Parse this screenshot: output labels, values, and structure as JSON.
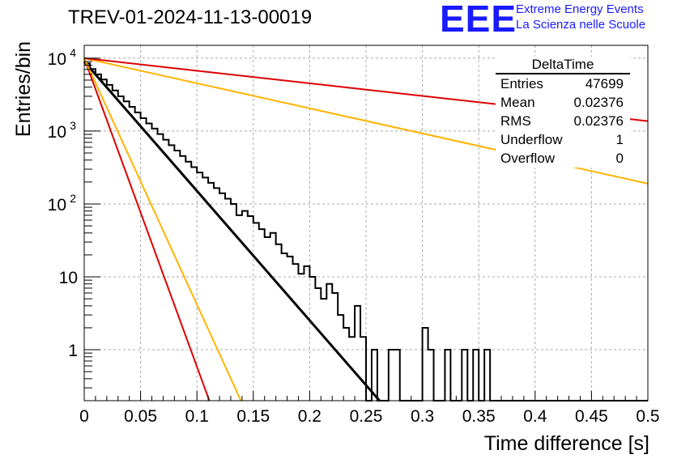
{
  "header": {
    "title": "TREV-01-2024-11-13-00019",
    "logo_text": "EEE",
    "logo_line1": "Extreme Energy Events",
    "logo_line2": "La Scienza nelle Scuole"
  },
  "stats": {
    "title": "DeltaTime",
    "rows": [
      {
        "label": "Entries",
        "value": "47699"
      },
      {
        "label": "Mean",
        "value": "0.02376"
      },
      {
        "label": "RMS",
        "value": "0.02376"
      },
      {
        "label": "Underflow",
        "value": "1"
      },
      {
        "label": "Overflow",
        "value": "0"
      }
    ]
  },
  "chart_data": {
    "type": "line",
    "title": "TREV-01-2024-11-13-00019",
    "xlabel": "Time difference [s]",
    "ylabel": "Entries/bin",
    "xlim": [
      0,
      0.5
    ],
    "ylim": [
      0.2,
      15000
    ],
    "y_scale": "log",
    "grid": true,
    "x_ticks": [
      "0",
      "0.05",
      "0.1",
      "0.15",
      "0.2",
      "0.25",
      "0.3",
      "0.35",
      "0.4",
      "0.45",
      "0.5"
    ],
    "y_ticks": [
      {
        "value": 1,
        "label": "1"
      },
      {
        "value": 10,
        "label": "10"
      },
      {
        "value": 100,
        "label": "10",
        "exp": "2"
      },
      {
        "value": 1000,
        "label": "10",
        "exp": "3"
      },
      {
        "value": 10000,
        "label": "10",
        "exp": "4"
      }
    ],
    "histogram": {
      "bin_width": 0.005,
      "bin_edges_start": 0,
      "values": [
        8500,
        7100,
        6000,
        5100,
        4300,
        3600,
        3000,
        2550,
        2150,
        1800,
        1500,
        1270,
        1080,
        910,
        760,
        640,
        540,
        455,
        380,
        320,
        270,
        230,
        195,
        165,
        140,
        118,
        100,
        70,
        80,
        68,
        55,
        45,
        35,
        40,
        28,
        21,
        19,
        15,
        11,
        14,
        10,
        7,
        5,
        8,
        6,
        3,
        2,
        1.5,
        4,
        1.5,
        0,
        1,
        0,
        0,
        1,
        1,
        0,
        0,
        0,
        0,
        2,
        1,
        0,
        0,
        1,
        0,
        0,
        1,
        0,
        1,
        0,
        1,
        0,
        0,
        0,
        0,
        0,
        0,
        0,
        0,
        0,
        0,
        0,
        0,
        0,
        0,
        0,
        0,
        0,
        0,
        0,
        0,
        0,
        0,
        0,
        0,
        0,
        0,
        0,
        0
      ]
    },
    "series": [
      {
        "name": "",
        "color": "#000000",
        "x": [
          0,
          0.262
        ],
        "y": [
          9000,
          0.2
        ]
      },
      {
        "name": "",
        "color": "#dd0000",
        "x": [
          0,
          0.111
        ],
        "y": [
          10000,
          0.2
        ]
      },
      {
        "name": "",
        "color": "#ffb400",
        "x": [
          0,
          0.139
        ],
        "y": [
          10000,
          0.2
        ]
      },
      {
        "name": "",
        "color": "#ffb400",
        "x": [
          0,
          0.5
        ],
        "y": [
          10000,
          190
        ]
      },
      {
        "name": "",
        "color": "#dd0000",
        "x": [
          0,
          0.5
        ],
        "y": [
          10000,
          1370
        ]
      }
    ]
  }
}
